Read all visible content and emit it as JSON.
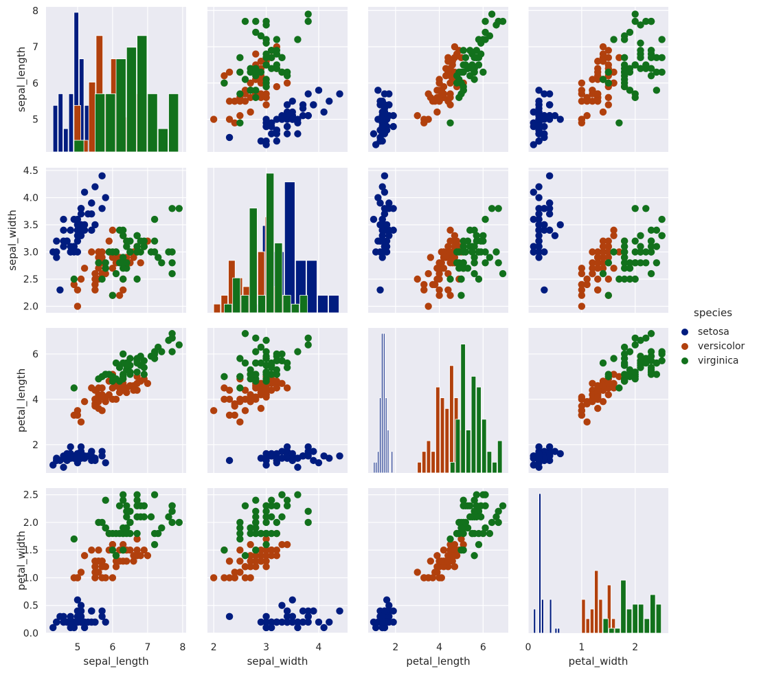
{
  "chart_data": {
    "type": "scatter",
    "title": "",
    "variables": [
      "sepal_length",
      "sepal_width",
      "petal_length",
      "petal_width"
    ],
    "axis_ranges": {
      "sepal_length": [
        4.1,
        8.1
      ],
      "sepal_width": [
        1.88,
        4.55
      ],
      "petal_length": [
        0.75,
        7.15
      ],
      "petal_width": [
        0.0,
        2.62
      ]
    },
    "ticks": {
      "sepal_length": [
        "5",
        "6",
        "7",
        "8"
      ],
      "sepal_width": [
        "2.0",
        "2.5",
        "3.0",
        "3.5",
        "4.0",
        "4.5"
      ],
      "petal_length": [
        "2",
        "4",
        "6"
      ],
      "petal_width": [
        "0.0",
        "0.5",
        "1.0",
        "1.5",
        "2.0",
        "2.5"
      ]
    },
    "x_ticks": {
      "sepal_length": [
        "5",
        "6",
        "7",
        "8"
      ],
      "sepal_width": [
        "2",
        "3",
        "4"
      ],
      "petal_length": [
        "2",
        "4",
        "6"
      ],
      "petal_width": [
        "0",
        "1",
        "2"
      ]
    },
    "grid": true,
    "legend": {
      "title": "species",
      "placement": "right"
    },
    "series": [
      {
        "name": "setosa",
        "color": "#001c7f",
        "points": [
          [
            5.1,
            3.5,
            1.4,
            0.2
          ],
          [
            4.9,
            3.0,
            1.4,
            0.2
          ],
          [
            4.7,
            3.2,
            1.3,
            0.2
          ],
          [
            4.6,
            3.1,
            1.5,
            0.2
          ],
          [
            5.0,
            3.6,
            1.4,
            0.2
          ],
          [
            5.4,
            3.9,
            1.7,
            0.4
          ],
          [
            4.6,
            3.4,
            1.4,
            0.3
          ],
          [
            5.0,
            3.4,
            1.5,
            0.2
          ],
          [
            4.4,
            2.9,
            1.4,
            0.2
          ],
          [
            4.9,
            3.1,
            1.5,
            0.1
          ],
          [
            5.4,
            3.7,
            1.5,
            0.2
          ],
          [
            4.8,
            3.4,
            1.6,
            0.2
          ],
          [
            4.8,
            3.0,
            1.4,
            0.1
          ],
          [
            4.3,
            3.0,
            1.1,
            0.1
          ],
          [
            5.8,
            4.0,
            1.2,
            0.2
          ],
          [
            5.7,
            4.4,
            1.5,
            0.4
          ],
          [
            5.4,
            3.9,
            1.3,
            0.4
          ],
          [
            5.1,
            3.5,
            1.4,
            0.3
          ],
          [
            5.7,
            3.8,
            1.7,
            0.3
          ],
          [
            5.1,
            3.8,
            1.5,
            0.3
          ],
          [
            5.4,
            3.4,
            1.7,
            0.2
          ],
          [
            5.1,
            3.7,
            1.5,
            0.4
          ],
          [
            4.6,
            3.6,
            1.0,
            0.2
          ],
          [
            5.1,
            3.3,
            1.7,
            0.5
          ],
          [
            4.8,
            3.4,
            1.9,
            0.2
          ],
          [
            5.0,
            3.0,
            1.6,
            0.2
          ],
          [
            5.0,
            3.4,
            1.6,
            0.4
          ],
          [
            5.2,
            3.5,
            1.5,
            0.2
          ],
          [
            5.2,
            3.4,
            1.4,
            0.2
          ],
          [
            4.7,
            3.2,
            1.6,
            0.2
          ],
          [
            4.8,
            3.1,
            1.6,
            0.2
          ],
          [
            5.4,
            3.4,
            1.5,
            0.4
          ],
          [
            5.2,
            4.1,
            1.5,
            0.1
          ],
          [
            5.5,
            4.2,
            1.4,
            0.2
          ],
          [
            4.9,
            3.1,
            1.5,
            0.2
          ],
          [
            5.0,
            3.2,
            1.2,
            0.2
          ],
          [
            5.5,
            3.5,
            1.3,
            0.2
          ],
          [
            4.9,
            3.6,
            1.4,
            0.1
          ],
          [
            4.4,
            3.0,
            1.3,
            0.2
          ],
          [
            5.1,
            3.4,
            1.5,
            0.2
          ],
          [
            5.0,
            3.5,
            1.3,
            0.3
          ],
          [
            4.5,
            2.3,
            1.3,
            0.3
          ],
          [
            4.4,
            3.2,
            1.3,
            0.2
          ],
          [
            5.0,
            3.5,
            1.6,
            0.6
          ],
          [
            5.1,
            3.8,
            1.9,
            0.4
          ],
          [
            4.8,
            3.0,
            1.4,
            0.3
          ],
          [
            5.1,
            3.8,
            1.6,
            0.2
          ],
          [
            4.6,
            3.2,
            1.4,
            0.2
          ],
          [
            5.3,
            3.7,
            1.5,
            0.2
          ],
          [
            5.0,
            3.3,
            1.4,
            0.2
          ]
        ]
      },
      {
        "name": "versicolor",
        "color": "#b1400d",
        "points": [
          [
            7.0,
            3.2,
            4.7,
            1.4
          ],
          [
            6.4,
            3.2,
            4.5,
            1.5
          ],
          [
            6.9,
            3.1,
            4.9,
            1.5
          ],
          [
            5.5,
            2.3,
            4.0,
            1.3
          ],
          [
            6.5,
            2.8,
            4.6,
            1.5
          ],
          [
            5.7,
            2.8,
            4.5,
            1.3
          ],
          [
            6.3,
            3.3,
            4.7,
            1.6
          ],
          [
            4.9,
            2.4,
            3.3,
            1.0
          ],
          [
            6.6,
            2.9,
            4.6,
            1.3
          ],
          [
            5.2,
            2.7,
            3.9,
            1.4
          ],
          [
            5.0,
            2.0,
            3.5,
            1.0
          ],
          [
            5.9,
            3.0,
            4.2,
            1.5
          ],
          [
            6.0,
            2.2,
            4.0,
            1.0
          ],
          [
            6.1,
            2.9,
            4.7,
            1.4
          ],
          [
            5.6,
            2.9,
            3.6,
            1.3
          ],
          [
            6.7,
            3.1,
            4.4,
            1.4
          ],
          [
            5.6,
            3.0,
            4.5,
            1.5
          ],
          [
            5.8,
            2.7,
            4.1,
            1.0
          ],
          [
            6.2,
            2.2,
            4.5,
            1.5
          ],
          [
            5.6,
            2.5,
            3.9,
            1.1
          ],
          [
            5.9,
            3.2,
            4.8,
            1.8
          ],
          [
            6.1,
            2.8,
            4.0,
            1.3
          ],
          [
            6.3,
            2.5,
            4.9,
            1.5
          ],
          [
            6.1,
            2.8,
            4.7,
            1.2
          ],
          [
            6.4,
            2.9,
            4.3,
            1.3
          ],
          [
            6.6,
            3.0,
            4.4,
            1.4
          ],
          [
            6.8,
            2.8,
            4.8,
            1.4
          ],
          [
            6.7,
            3.0,
            5.0,
            1.7
          ],
          [
            6.0,
            2.9,
            4.5,
            1.5
          ],
          [
            5.7,
            2.6,
            3.5,
            1.0
          ],
          [
            5.5,
            2.4,
            3.8,
            1.1
          ],
          [
            5.5,
            2.4,
            3.7,
            1.0
          ],
          [
            5.8,
            2.7,
            3.9,
            1.2
          ],
          [
            6.0,
            2.7,
            5.1,
            1.6
          ],
          [
            5.4,
            3.0,
            4.5,
            1.5
          ],
          [
            6.0,
            3.4,
            4.5,
            1.6
          ],
          [
            6.7,
            3.1,
            4.7,
            1.5
          ],
          [
            6.3,
            2.3,
            4.4,
            1.3
          ],
          [
            5.6,
            3.0,
            4.1,
            1.3
          ],
          [
            5.5,
            2.5,
            4.0,
            1.3
          ],
          [
            5.5,
            2.6,
            4.4,
            1.2
          ],
          [
            6.1,
            3.0,
            4.6,
            1.4
          ],
          [
            5.8,
            2.6,
            4.0,
            1.2
          ],
          [
            5.0,
            2.3,
            3.3,
            1.0
          ],
          [
            5.6,
            2.7,
            4.2,
            1.3
          ],
          [
            5.7,
            3.0,
            4.2,
            1.2
          ],
          [
            5.7,
            2.9,
            4.2,
            1.3
          ],
          [
            6.2,
            2.9,
            4.3,
            1.3
          ],
          [
            5.1,
            2.5,
            3.0,
            1.1
          ],
          [
            5.7,
            2.8,
            4.1,
            1.3
          ]
        ]
      },
      {
        "name": "virginica",
        "color": "#12711c",
        "points": [
          [
            6.3,
            3.3,
            6.0,
            2.5
          ],
          [
            5.8,
            2.7,
            5.1,
            1.9
          ],
          [
            7.1,
            3.0,
            5.9,
            2.1
          ],
          [
            6.3,
            2.9,
            5.6,
            1.8
          ],
          [
            6.5,
            3.0,
            5.8,
            2.2
          ],
          [
            7.6,
            3.0,
            6.6,
            2.1
          ],
          [
            4.9,
            2.5,
            4.5,
            1.7
          ],
          [
            7.3,
            2.9,
            6.3,
            1.8
          ],
          [
            6.7,
            2.5,
            5.8,
            1.8
          ],
          [
            7.2,
            3.6,
            6.1,
            2.5
          ],
          [
            6.5,
            3.2,
            5.1,
            2.0
          ],
          [
            6.4,
            2.7,
            5.3,
            1.9
          ],
          [
            6.8,
            3.0,
            5.5,
            2.1
          ],
          [
            5.7,
            2.5,
            5.0,
            2.0
          ],
          [
            5.8,
            2.8,
            5.1,
            2.4
          ],
          [
            6.4,
            3.2,
            5.3,
            2.3
          ],
          [
            6.5,
            3.0,
            5.5,
            1.8
          ],
          [
            7.7,
            3.8,
            6.7,
            2.2
          ],
          [
            7.7,
            2.6,
            6.9,
            2.3
          ],
          [
            6.0,
            2.2,
            5.0,
            1.5
          ],
          [
            6.9,
            3.2,
            5.7,
            2.3
          ],
          [
            5.6,
            2.8,
            4.9,
            2.0
          ],
          [
            7.7,
            2.8,
            6.7,
            2.0
          ],
          [
            6.3,
            2.7,
            4.9,
            1.8
          ],
          [
            6.7,
            3.3,
            5.7,
            2.1
          ],
          [
            7.2,
            3.2,
            6.0,
            1.8
          ],
          [
            6.2,
            2.8,
            4.8,
            1.8
          ],
          [
            6.1,
            3.0,
            4.9,
            1.8
          ],
          [
            6.4,
            2.8,
            5.6,
            2.1
          ],
          [
            7.2,
            3.0,
            5.8,
            1.6
          ],
          [
            7.4,
            2.8,
            6.1,
            1.9
          ],
          [
            7.9,
            3.8,
            6.4,
            2.0
          ],
          [
            6.4,
            2.8,
            5.6,
            2.2
          ],
          [
            6.3,
            2.8,
            5.1,
            1.5
          ],
          [
            6.1,
            2.6,
            5.6,
            1.4
          ],
          [
            7.7,
            3.0,
            6.1,
            2.3
          ],
          [
            6.3,
            3.4,
            5.6,
            2.4
          ],
          [
            6.4,
            3.1,
            5.5,
            1.8
          ],
          [
            6.0,
            3.0,
            4.8,
            1.8
          ],
          [
            6.9,
            3.1,
            5.4,
            2.1
          ],
          [
            6.7,
            3.1,
            5.6,
            2.4
          ],
          [
            6.9,
            3.1,
            5.1,
            2.3
          ],
          [
            5.8,
            2.7,
            5.1,
            1.9
          ],
          [
            6.8,
            3.2,
            5.9,
            2.3
          ],
          [
            6.7,
            3.3,
            5.7,
            2.5
          ],
          [
            6.7,
            3.0,
            5.2,
            2.3
          ],
          [
            6.3,
            2.5,
            5.0,
            1.9
          ],
          [
            6.5,
            3.0,
            5.2,
            2.0
          ],
          [
            6.2,
            3.4,
            5.4,
            2.3
          ],
          [
            5.9,
            3.0,
            5.1,
            1.8
          ]
        ]
      }
    ]
  }
}
